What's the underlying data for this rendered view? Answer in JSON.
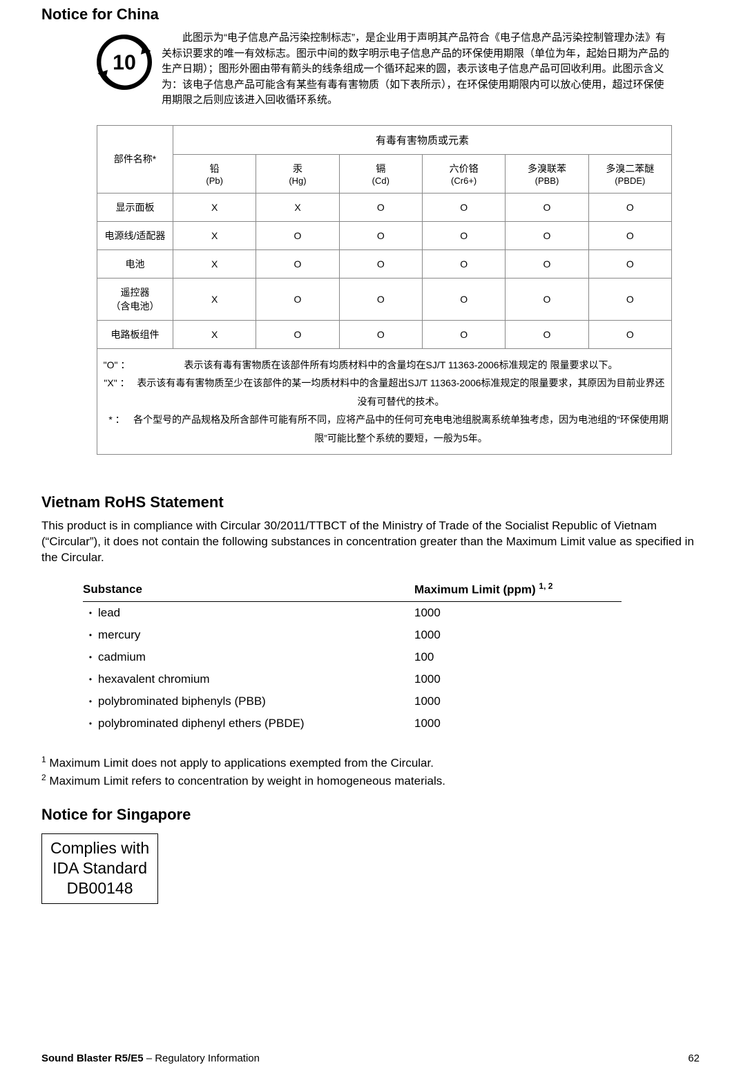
{
  "china": {
    "title": "Notice for China",
    "intro": "此图示为“电子信息产品污染控制标志”，是企业用于声明其产品符合《电子信息产品污染控制管理办法》有关标识要求的唯一有效标志。图示中间的数字明示电子信息产品的环保使用期限（单位为年，起始日期为产品的生产日期）；图形外圈由带有箭头的线条组成一个循环起来的圆，表示该电子信息产品可回收利用。此图示含义为：该电子信息产品可能含有某些有毒有害物质（如下表所示），在环保使用期限内可以放心使用，超过环保使用期限之后则应该进入回收循环系统。",
    "efup_years": "10",
    "col_part_header": "部件名称*",
    "col_span_header": "有毒有害物质或元素",
    "cols": [
      {
        "zh": "铅",
        "sym": "(Pb)"
      },
      {
        "zh": "汞",
        "sym": "(Hg)"
      },
      {
        "zh": "镉",
        "sym": "(Cd)"
      },
      {
        "zh": "六价铬",
        "sym": "(Cr6+)"
      },
      {
        "zh": "多溴联苯",
        "sym": "(PBB)"
      },
      {
        "zh": "多溴二苯醚",
        "sym": "(PBDE)"
      }
    ],
    "rows": [
      {
        "part": "显示面板",
        "v": [
          "X",
          "X",
          "O",
          "O",
          "O",
          "O"
        ]
      },
      {
        "part": "电源线/适配器",
        "v": [
          "X",
          "O",
          "O",
          "O",
          "O",
          "O"
        ]
      },
      {
        "part": "电池",
        "v": [
          "X",
          "O",
          "O",
          "O",
          "O",
          "O"
        ]
      },
      {
        "part": "遥控器\n（含电池）",
        "v": [
          "X",
          "O",
          "O",
          "O",
          "O",
          "O"
        ]
      },
      {
        "part": "电路板组件",
        "v": [
          "X",
          "O",
          "O",
          "O",
          "O",
          "O"
        ]
      }
    ],
    "legend": {
      "o": "表示该有毒有害物质在该部件所有均质材料中的含量均在SJ/T 11363-2006标准规定的 限量要求以下。",
      "x": "表示该有毒有害物质至少在该部件的某一均质材料中的含量超出SJ/T 11363-2006标准规定的限量要求，其原因为目前业界还没有可替代的技术。",
      "star": "各个型号的产品规格及所含部件可能有所不同，应将产品中的任何可充电电池组脱离系统单独考虑，因为电池组的“环保使用期限”可能比整个系统的要短，一般为5年。"
    }
  },
  "vietnam": {
    "title": "Vietnam RoHS Statement",
    "intro": "This product is in compliance with Circular 30/2011/TTBCT of the Ministry of Trade of the Socialist Republic of Vietnam (“Circular”), it does not contain the following substances in concentration greater than the Maximum Limit value as specified in the Circular.",
    "header_substance": "Substance",
    "header_limit": "Maximum Limit (ppm)",
    "header_limit_sup": "1, 2",
    "rows": [
      {
        "name": "lead",
        "limit": "1000"
      },
      {
        "name": "mercury",
        "limit": "1000"
      },
      {
        "name": "cadmium",
        "limit": "100"
      },
      {
        "name": "hexavalent chromium",
        "limit": "1000"
      },
      {
        "name": "polybrominated biphenyls (PBB)",
        "limit": "1000"
      },
      {
        "name": "polybrominated diphenyl ethers (PBDE)",
        "limit": "1000"
      }
    ],
    "fn1": "Maximum Limit does not apply to applications exempted from the Circular.",
    "fn2": "Maximum Limit refers to concentration by weight in homogeneous materials."
  },
  "singapore": {
    "title": "Notice for Singapore",
    "line1": "Complies with",
    "line2": "IDA Standard",
    "line3": "DB00148"
  },
  "footer": {
    "product": "Sound Blaster R5/E5",
    "section": " – Regulatory Information",
    "page": "62"
  }
}
